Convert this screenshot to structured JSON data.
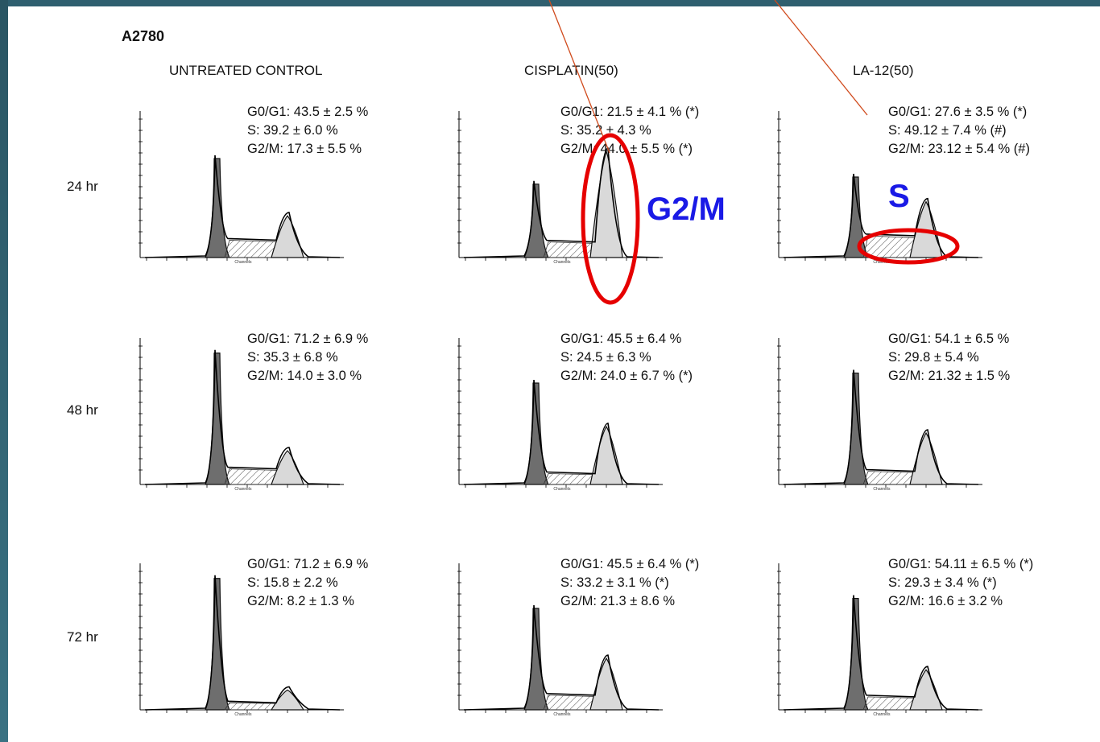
{
  "chart_data": {
    "type": "area",
    "title": "A2780",
    "columns": [
      "UNTREATED CONTROL",
      "CISPLATIN(50)",
      "LA-12(50)"
    ],
    "rows": [
      "24 hr",
      "48 hr",
      "72 hr"
    ],
    "axis_label": "Channels",
    "panels": [
      {
        "row": 0,
        "col": 0,
        "stats": [
          "G0/G1: 43.5 ± 2.5 %",
          "S: 39.2 ± 6.0 %",
          "G2/M: 17.3 ± 5.5 %"
        ],
        "g1": 43.5,
        "s": 39.2,
        "g2m": 17.3
      },
      {
        "row": 0,
        "col": 1,
        "stats": [
          "G0/G1: 21.5 ± 4.1 % (*)",
          "S: 35.2 ± 4.3 %",
          "G2/M: 44.0 ± 5.5 % (*)"
        ],
        "g1": 21.5,
        "s": 35.2,
        "g2m": 44.0
      },
      {
        "row": 0,
        "col": 2,
        "stats": [
          "G0/G1: 27.6 ± 3.5 % (*)",
          "S: 49.12 ± 7.4 % (#)",
          "G2/M: 23.12 ± 5.4 % (#)"
        ],
        "g1": 27.6,
        "s": 49.12,
        "g2m": 23.12
      },
      {
        "row": 1,
        "col": 0,
        "stats": [
          "G0/G1: 71.2 ± 6.9 %",
          "S: 35.3 ± 6.8 %",
          "G2/M: 14.0 ± 3.0 %"
        ],
        "g1": 71.2,
        "s": 35.3,
        "g2m": 14.0
      },
      {
        "row": 1,
        "col": 1,
        "stats": [
          "G0/G1: 45.5 ± 6.4 %",
          "S: 24.5 ± 6.3 %",
          "G2/M: 24.0 ± 6.7 % (*)"
        ],
        "g1": 45.5,
        "s": 24.5,
        "g2m": 24.0
      },
      {
        "row": 1,
        "col": 2,
        "stats": [
          "G0/G1: 54.1 ± 6.5 %",
          "S: 29.8 ± 5.4 %",
          "G2/M: 21.32 ± 1.5 %"
        ],
        "g1": 54.1,
        "s": 29.8,
        "g2m": 21.32
      },
      {
        "row": 2,
        "col": 0,
        "stats": [
          "G0/G1: 71.2 ± 6.9 %",
          "S: 15.8 ± 2.2 %",
          "G2/M: 8.2 ± 1.3 %"
        ],
        "g1": 71.2,
        "s": 15.8,
        "g2m": 8.2
      },
      {
        "row": 2,
        "col": 1,
        "stats": [
          "G0/G1: 45.5 ± 6.4 % (*)",
          "S: 33.2 ± 3.1 % (*)",
          "G2/M: 21.3 ± 8.6 %"
        ],
        "g1": 45.5,
        "s": 33.2,
        "g2m": 21.3
      },
      {
        "row": 2,
        "col": 2,
        "stats": [
          "G0/G1: 54.11 ± 6.5 % (*)",
          "S: 29.3 ± 3.4 % (*)",
          "G2/M: 16.6 ± 3.2 %"
        ],
        "g1": 54.11,
        "s": 29.3,
        "g2m": 16.6
      }
    ],
    "annotations": [
      "G2/M",
      "S"
    ]
  },
  "colors": {
    "g1_fill": "#6e6e6e",
    "g2m_fill": "#d9d9d9",
    "hatch": "#444444",
    "highlight": "#e60000",
    "arrow": "#d04a1c",
    "annotation_text": "#1a1ae6",
    "background": "#2f5f6f"
  }
}
